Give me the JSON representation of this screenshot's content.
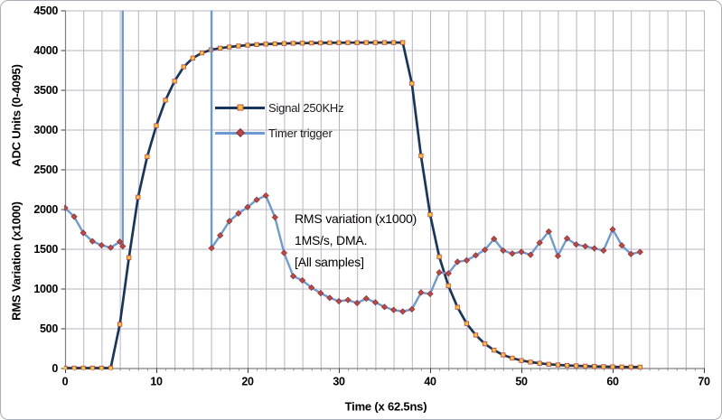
{
  "chart_data": {
    "type": "line",
    "title": "",
    "xlabel": "Time (x 62.5ns)",
    "ylabel_left_top": "ADC Units (0-4095)",
    "ylabel_left_bottom": "RMS Variation (x1000)",
    "xlim": [
      0,
      70
    ],
    "ylim": [
      0,
      4500
    ],
    "x_ticks": [
      0,
      10,
      20,
      30,
      40,
      50,
      60,
      70
    ],
    "y_ticks": [
      0,
      500,
      1000,
      1500,
      2000,
      2500,
      3000,
      3500,
      4000,
      4500
    ],
    "x_gridline_step": 2,
    "grid": true,
    "legend_position": "inside-upper-left",
    "colors": {
      "signal_line": "#17365D",
      "signal_marker_fill": "#FFC233",
      "signal_marker_edge": "#C0504D",
      "timer_line": "#6B9BD2",
      "timer_marker_fill": "#C24642",
      "timer_marker_edge": "#8C2E2C",
      "gridline": "#b9b3c0",
      "axis_line": "#7f7f7f",
      "tick": "#404040"
    },
    "series": [
      {
        "name": "Signal 250KHz",
        "marker": "square",
        "x_start": 0,
        "x_step": 1,
        "values": [
          0,
          0,
          0,
          0,
          0,
          0,
          550,
          1390,
          2150,
          2660,
          3050,
          3370,
          3610,
          3790,
          3900,
          3965,
          4005,
          4025,
          4040,
          4052,
          4062,
          4070,
          4076,
          4080,
          4083,
          4086,
          4088,
          4090,
          4091,
          4092,
          4093,
          4094,
          4094,
          4095,
          4095,
          4095,
          4095,
          4095,
          3580,
          2670,
          1930,
          1400,
          1035,
          765,
          560,
          415,
          305,
          225,
          165,
          125,
          95,
          75,
          60,
          48,
          40,
          33,
          28,
          24,
          21,
          18,
          16,
          14,
          13,
          12
        ]
      },
      {
        "name": "Timer trigger",
        "marker": "diamond",
        "trigger_positions": [
          6.32,
          16.05
        ],
        "segments": [
          {
            "x": [
              0,
              1,
              2,
              3,
              4,
              5,
              6,
              6.32
            ],
            "values": [
              2015,
              1905,
              1700,
              1595,
              1545,
              1515,
              1590,
              1532
            ],
            "spike_to_top_at_end": true
          },
          {
            "x": [
              16.05,
              17,
              18,
              19,
              20,
              21,
              22,
              23,
              24,
              25,
              26,
              27,
              28,
              29,
              30,
              31,
              32,
              33,
              34,
              35,
              36,
              37,
              38,
              39,
              40,
              41,
              42,
              43,
              44,
              45,
              46,
              47,
              48,
              49,
              50,
              51,
              52,
              53,
              54,
              55,
              56,
              57,
              58,
              59,
              60,
              61,
              62,
              63
            ],
            "values": [
              1509,
              1669,
              1848,
              1946,
              2025,
              2117,
              2170,
              1897,
              1449,
              1156,
              1103,
              1012,
              943,
              883,
              841,
              856,
              818,
              875,
              826,
              769,
              731,
              712,
              740,
              950,
              933,
              1203,
              1190,
              1337,
              1355,
              1418,
              1487,
              1625,
              1478,
              1440,
              1462,
              1425,
              1577,
              1718,
              1410,
              1631,
              1555,
              1532,
              1506,
              1479,
              1745,
              1543,
              1435,
              1460
            ],
            "spike_from_top_at_start": true
          }
        ]
      }
    ],
    "annotation": {
      "lines": [
        "RMS variation (x1000)",
        "1MS/s, DMA.",
        "[All samples]"
      ]
    }
  },
  "legend": {
    "items": [
      {
        "label": "Signal 250KHz"
      },
      {
        "label": "Timer trigger"
      }
    ]
  }
}
